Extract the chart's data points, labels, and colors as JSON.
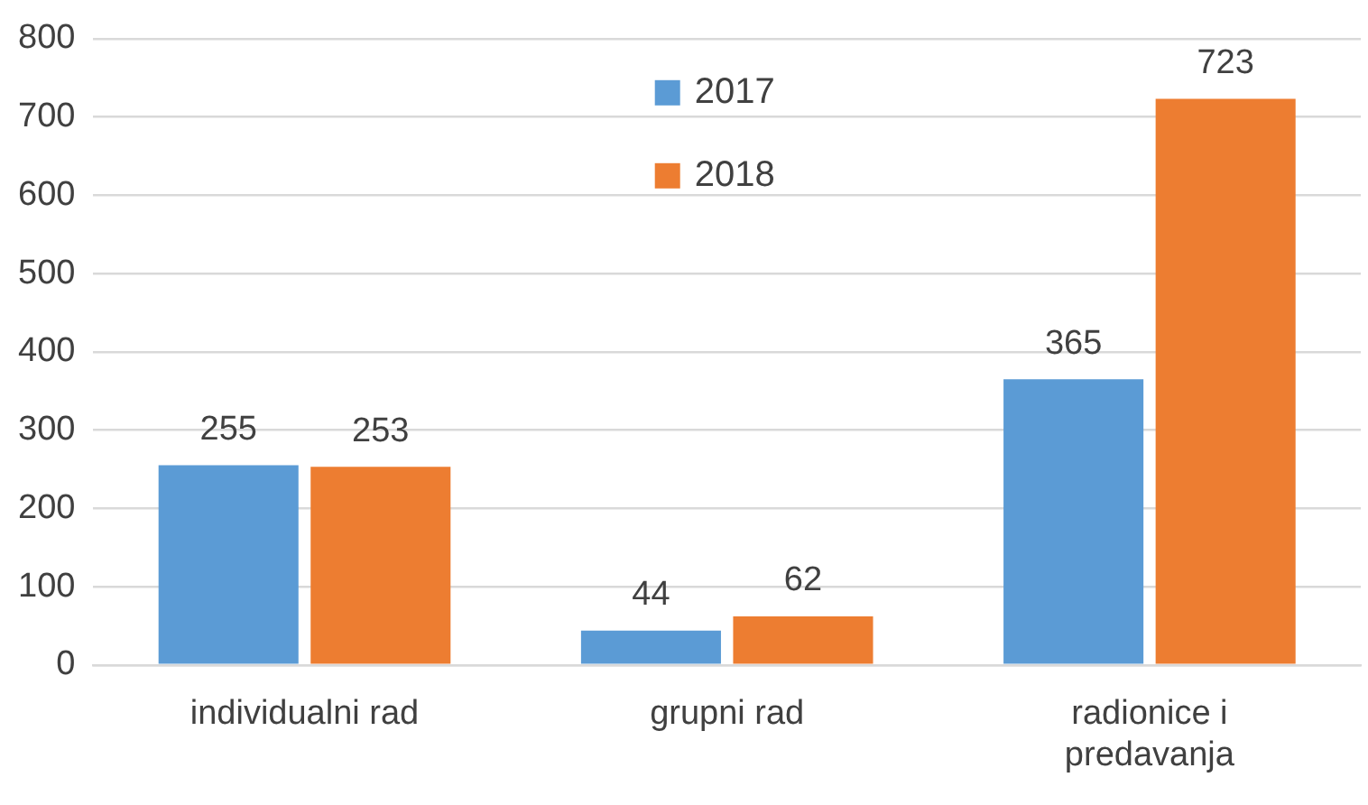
{
  "chart_data": {
    "type": "bar",
    "categories": [
      "individualni rad",
      "grupni rad",
      "radionice i predavanja"
    ],
    "series": [
      {
        "name": "2017",
        "color": "#5b9bd5",
        "values": [
          255,
          44,
          365
        ]
      },
      {
        "name": "2018",
        "color": "#ed7d31",
        "values": [
          253,
          62,
          723
        ]
      }
    ],
    "ylim": [
      0,
      800
    ],
    "yticks": [
      0,
      100,
      200,
      300,
      400,
      500,
      600,
      700,
      800
    ],
    "grid": "y",
    "legend": "top",
    "data_labels": true
  }
}
